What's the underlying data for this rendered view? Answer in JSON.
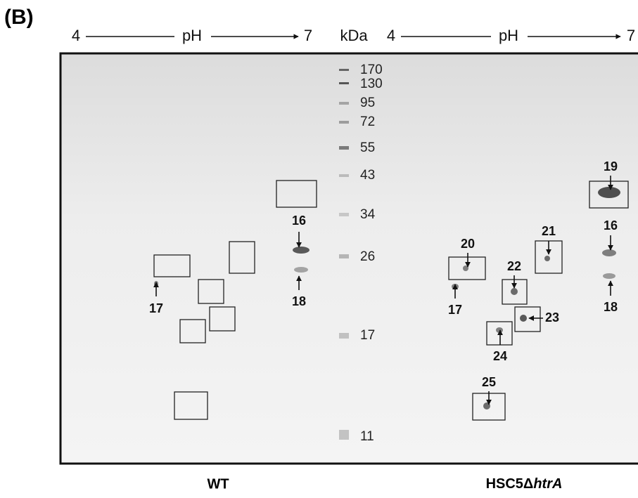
{
  "panel_label": "(B)",
  "header": {
    "left": {
      "start": "4",
      "axis": "pH",
      "end": "7"
    },
    "unit": "kDa",
    "right": {
      "start": "4",
      "axis": "pH",
      "end": "7"
    }
  },
  "markers": [
    170,
    130,
    95,
    72,
    55,
    43,
    34,
    26,
    17,
    11
  ],
  "spots": [
    {
      "label": "16"
    },
    {
      "label": "18"
    },
    {
      "label": "17"
    },
    {
      "label": "19"
    },
    {
      "label": "16"
    },
    {
      "label": "18"
    },
    {
      "label": "20"
    },
    {
      "label": "17"
    },
    {
      "label": "21"
    },
    {
      "label": "22"
    },
    {
      "label": "23"
    },
    {
      "label": "24"
    },
    {
      "label": "25"
    }
  ],
  "lane_labels": {
    "left": "WT",
    "right": {
      "prefix": "HSC5Δ",
      "italic": "htrA"
    }
  }
}
